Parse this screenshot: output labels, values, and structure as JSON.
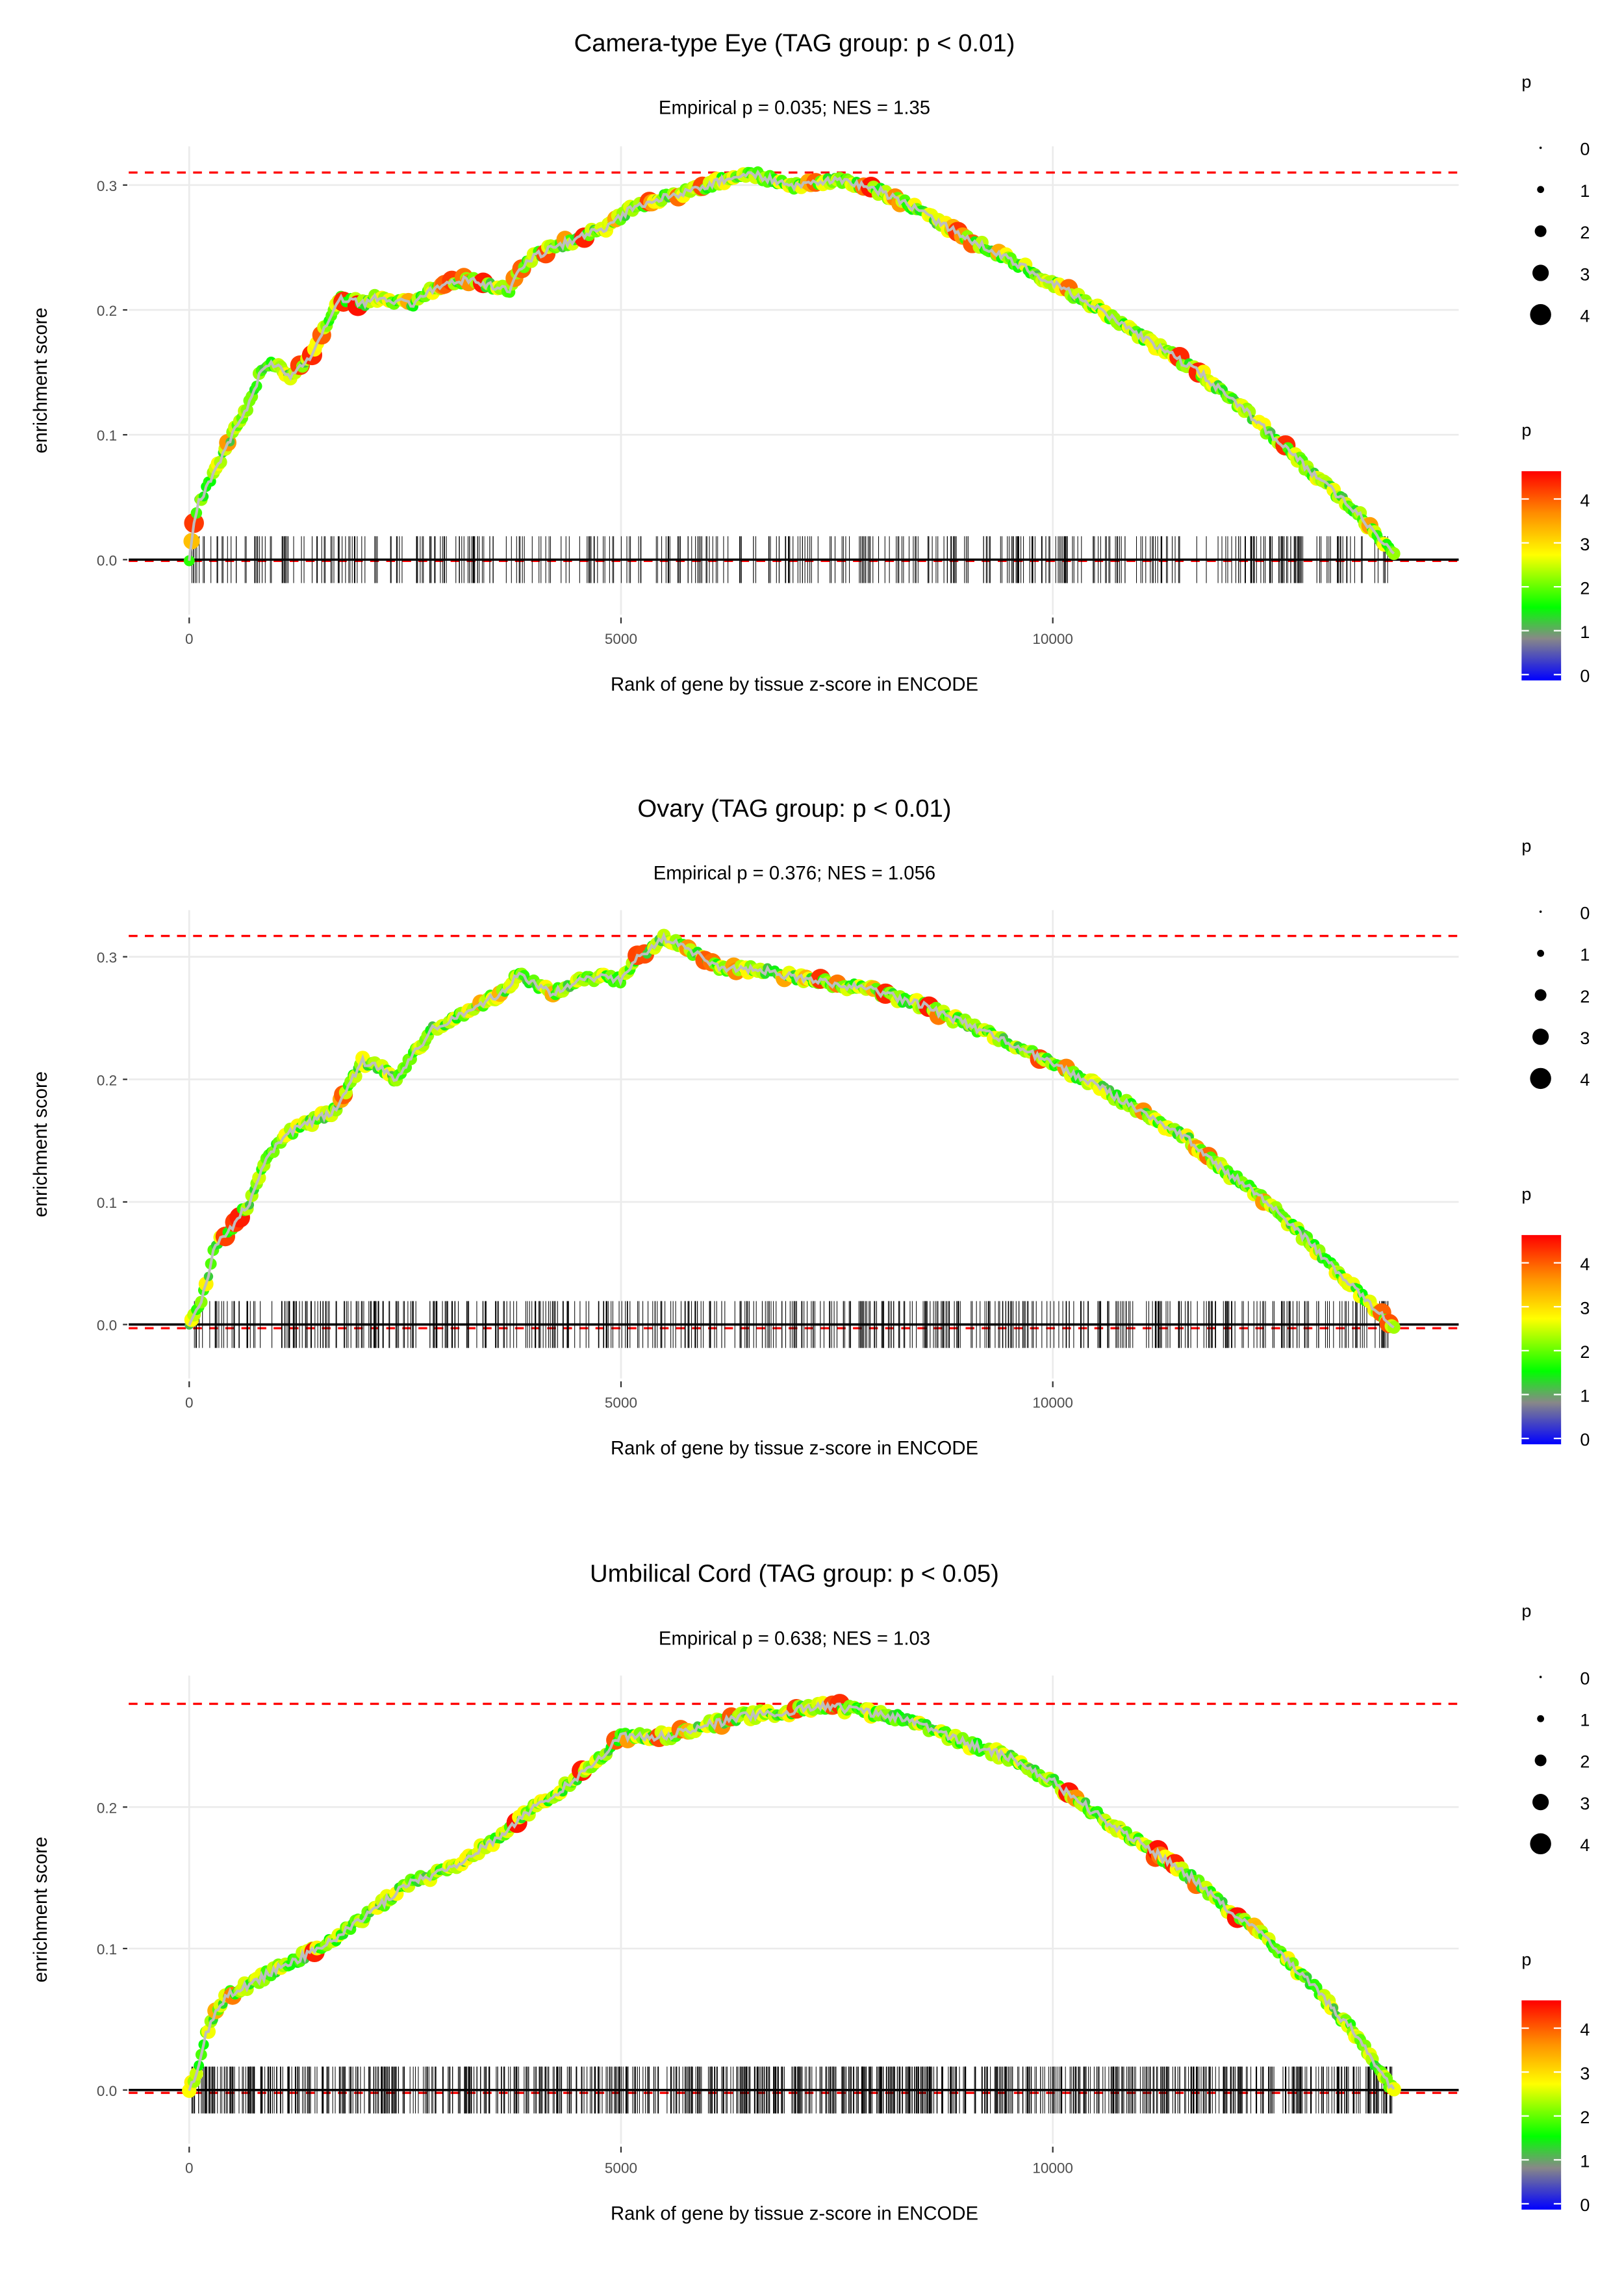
{
  "chart_data": [
    {
      "type": "line",
      "title": "Camera-type Eye (TAG group: p < 0.01)",
      "subtitle": "Empirical p = 0.035; NES = 1.35",
      "xlabel": "Rank of gene by tissue z-score in ENCODE",
      "ylabel": "enrichment score",
      "xlim": [
        -700,
        14700
      ],
      "ylim": [
        -0.044,
        0.331
      ],
      "xticks": [
        0,
        5000,
        10000
      ],
      "xtick_labels": [
        "0",
        "5000",
        "10000"
      ],
      "yticks": [
        0,
        0.1,
        0.2,
        0.3
      ],
      "ytick_labels": [
        "0.0",
        "0.1",
        "0.2",
        "0.3"
      ],
      "max_es": 0.31,
      "min_es": -0.001,
      "rug_genes": 420,
      "curve": [
        [
          0,
          0
        ],
        [
          50,
          0.025
        ],
        [
          100,
          0.045
        ],
        [
          300,
          0.07
        ],
        [
          500,
          0.1
        ],
        [
          700,
          0.125
        ],
        [
          850,
          0.155
        ],
        [
          1000,
          0.157
        ],
        [
          1150,
          0.145
        ],
        [
          1400,
          0.16
        ],
        [
          1600,
          0.19
        ],
        [
          1750,
          0.21
        ],
        [
          2000,
          0.205
        ],
        [
          2200,
          0.21
        ],
        [
          2600,
          0.205
        ],
        [
          2800,
          0.215
        ],
        [
          3200,
          0.225
        ],
        [
          3700,
          0.215
        ],
        [
          3900,
          0.24
        ],
        [
          4400,
          0.255
        ],
        [
          4800,
          0.265
        ],
        [
          5100,
          0.28
        ],
        [
          5500,
          0.29
        ],
        [
          6000,
          0.3
        ],
        [
          6500,
          0.31
        ],
        [
          7000,
          0.298
        ],
        [
          7500,
          0.305
        ],
        [
          8000,
          0.295
        ],
        [
          8300,
          0.285
        ],
        [
          8800,
          0.265
        ],
        [
          9500,
          0.24
        ],
        [
          10000,
          0.222
        ],
        [
          10300,
          0.21
        ],
        [
          11000,
          0.18
        ],
        [
          11700,
          0.15
        ],
        [
          12300,
          0.115
        ],
        [
          13000,
          0.07
        ],
        [
          13500,
          0.04
        ],
        [
          13950,
          0.003
        ]
      ]
    },
    {
      "type": "line",
      "title": "Ovary (TAG group: p < 0.01)",
      "subtitle": "Empirical p = 0.376; NES = 1.056",
      "xlabel": "Rank of gene by tissue z-score in ENCODE",
      "ylabel": "enrichment score",
      "xlim": [
        -700,
        14700
      ],
      "ylim": [
        -0.044,
        0.338
      ],
      "xticks": [
        0,
        5000,
        10000
      ],
      "xtick_labels": [
        "0",
        "5000",
        "10000"
      ],
      "yticks": [
        0,
        0.1,
        0.2,
        0.3
      ],
      "ytick_labels": [
        "0.0",
        "0.1",
        "0.2",
        "0.3"
      ],
      "max_es": 0.317,
      "min_es": -0.003,
      "rug_genes": 520,
      "curve": [
        [
          0,
          0
        ],
        [
          150,
          0.02
        ],
        [
          300,
          0.065
        ],
        [
          500,
          0.08
        ],
        [
          700,
          0.1
        ],
        [
          900,
          0.135
        ],
        [
          1100,
          0.155
        ],
        [
          1400,
          0.165
        ],
        [
          1700,
          0.175
        ],
        [
          2000,
          0.215
        ],
        [
          2200,
          0.21
        ],
        [
          2400,
          0.2
        ],
        [
          2600,
          0.22
        ],
        [
          2800,
          0.24
        ],
        [
          3200,
          0.255
        ],
        [
          3600,
          0.27
        ],
        [
          3800,
          0.285
        ],
        [
          4200,
          0.27
        ],
        [
          4500,
          0.28
        ],
        [
          4800,
          0.285
        ],
        [
          5000,
          0.28
        ],
        [
          5200,
          0.3
        ],
        [
          5500,
          0.315
        ],
        [
          5800,
          0.305
        ],
        [
          6200,
          0.29
        ],
        [
          6600,
          0.29
        ],
        [
          7200,
          0.28
        ],
        [
          7800,
          0.275
        ],
        [
          8500,
          0.26
        ],
        [
          9000,
          0.245
        ],
        [
          9500,
          0.23
        ],
        [
          10000,
          0.212
        ],
        [
          10500,
          0.195
        ],
        [
          11000,
          0.175
        ],
        [
          11500,
          0.155
        ],
        [
          12000,
          0.125
        ],
        [
          12500,
          0.1
        ],
        [
          13000,
          0.065
        ],
        [
          13400,
          0.035
        ],
        [
          13700,
          0.015
        ],
        [
          13950,
          0
        ]
      ]
    },
    {
      "type": "line",
      "title": "Umbilical Cord (TAG group: p < 0.05)",
      "subtitle": "Empirical p = 0.638; NES = 1.03",
      "xlabel": "Rank of gene by tissue z-score in ENCODE",
      "ylabel": "enrichment score",
      "xlim": [
        -700,
        14700
      ],
      "ylim": [
        -0.038,
        0.293
      ],
      "xticks": [
        0,
        5000,
        10000
      ],
      "xtick_labels": [
        "0",
        "5000",
        "10000"
      ],
      "yticks": [
        0,
        0.1,
        0.2
      ],
      "ytick_labels": [
        "0.0",
        "0.1",
        "0.2"
      ],
      "max_es": 0.273,
      "min_es": -0.002,
      "rug_genes": 900,
      "curve": [
        [
          0,
          0
        ],
        [
          100,
          0.015
        ],
        [
          200,
          0.04
        ],
        [
          400,
          0.065
        ],
        [
          700,
          0.075
        ],
        [
          1000,
          0.085
        ],
        [
          1500,
          0.1
        ],
        [
          2000,
          0.12
        ],
        [
          2500,
          0.145
        ],
        [
          3000,
          0.155
        ],
        [
          3500,
          0.175
        ],
        [
          4000,
          0.2
        ],
        [
          4500,
          0.22
        ],
        [
          5000,
          0.25
        ],
        [
          5500,
          0.25
        ],
        [
          6000,
          0.258
        ],
        [
          6500,
          0.265
        ],
        [
          7000,
          0.268
        ],
        [
          7300,
          0.272
        ],
        [
          7800,
          0.268
        ],
        [
          8300,
          0.262
        ],
        [
          9000,
          0.245
        ],
        [
          9500,
          0.235
        ],
        [
          10000,
          0.218
        ],
        [
          10500,
          0.195
        ],
        [
          11000,
          0.175
        ],
        [
          11500,
          0.155
        ],
        [
          12000,
          0.13
        ],
        [
          12500,
          0.105
        ],
        [
          13000,
          0.075
        ],
        [
          13500,
          0.04
        ],
        [
          13950,
          0
        ]
      ]
    }
  ],
  "legend": {
    "size_title": "p",
    "size_labels": [
      "0",
      "1",
      "2",
      "3",
      "4"
    ],
    "color_title": "p",
    "color_labels": [
      "0",
      "1",
      "2",
      "3",
      "4"
    ],
    "color_stops": [
      "#0000ff",
      "#888888",
      "#00ff00",
      "#ffff00",
      "#ff8c00",
      "#ff0000"
    ]
  },
  "colors": {
    "curve": "#bebebe",
    "dashed": "#ff0000",
    "grid": "#ebebeb"
  }
}
